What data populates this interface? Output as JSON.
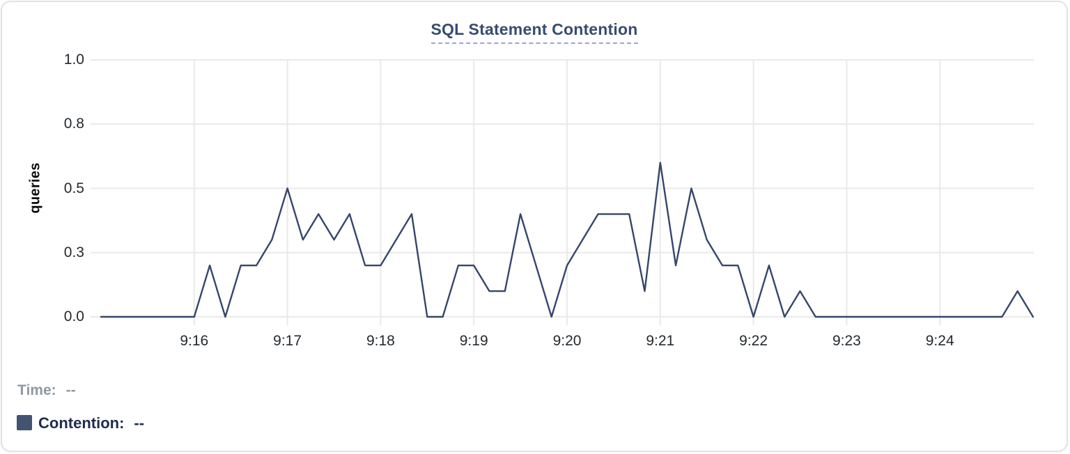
{
  "chart": {
    "legend": {
      "time_label": "Time:",
      "time_value": "--",
      "series_label": "Contention:",
      "series_value": "--"
    },
    "colors": {
      "line": "#35466b",
      "swatch": "#44536f",
      "title": "#374b72",
      "title_underline": "#9aa4d6",
      "grid": "#e9e9e9",
      "tick_text": "#24292e",
      "time_text": "#8f98a3",
      "contention_text": "#1e2c4e",
      "card_border": "#e2e2e2"
    }
  },
  "chart_data": {
    "type": "line",
    "title": "SQL Statement Contention",
    "xlabel": "",
    "ylabel": "queries",
    "ylim": [
      0,
      1
    ],
    "grid": true,
    "legend_position": "bottom-left",
    "y_tick_values": [
      0,
      0.25,
      0.5,
      0.75,
      1
    ],
    "y_tick_labels": [
      "0.0",
      "0.3",
      "0.5",
      "0.8",
      "1.0"
    ],
    "x_start": "9:15:00",
    "x_end": "9:25:00",
    "x_interval_seconds": 10,
    "x_tick_labels": [
      "9:16",
      "9:17",
      "9:18",
      "9:19",
      "9:20",
      "9:21",
      "9:22",
      "9:23",
      "9:24"
    ],
    "series": [
      {
        "name": "Contention",
        "unit": "queries",
        "values": [
          0,
          0,
          0,
          0,
          0,
          0,
          0,
          0.2,
          0,
          0.2,
          0.2,
          0.3,
          0.5,
          0.3,
          0.4,
          0.3,
          0.4,
          0.2,
          0.2,
          0.3,
          0.4,
          0,
          0,
          0.2,
          0.2,
          0.1,
          0.1,
          0.4,
          0.2,
          0,
          0.2,
          0.3,
          0.4,
          0.4,
          0.4,
          0.1,
          0.6,
          0.2,
          0.5,
          0.3,
          0.2,
          0.2,
          0,
          0.2,
          0,
          0.1,
          0,
          0,
          0,
          0,
          0,
          0,
          0,
          0,
          0,
          0,
          0,
          0,
          0,
          0.1,
          0
        ]
      }
    ]
  }
}
